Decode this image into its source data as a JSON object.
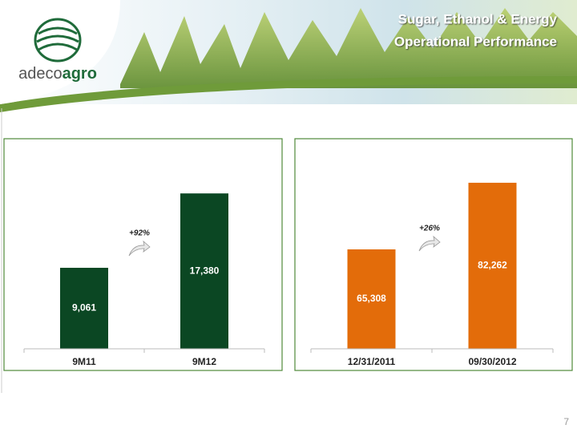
{
  "header": {
    "title_lines": [
      "Sugar, Ethanol & Energy",
      "Operational Performance"
    ],
    "logo": [
      "adeco",
      "agro"
    ]
  },
  "page_number": "7",
  "chart_data": [
    {
      "type": "bar",
      "categories": [
        "9M11",
        "9M12"
      ],
      "values": [
        9061,
        17380
      ],
      "value_labels": [
        "9,061",
        "17,380"
      ],
      "color": "#0b4723",
      "ylim": [
        0,
        20000
      ],
      "annotation": "+92%"
    },
    {
      "type": "bar",
      "categories": [
        "12/31/2011",
        "09/30/2012"
      ],
      "values": [
        65308,
        82262
      ],
      "value_labels": [
        "65,308",
        "82,262"
      ],
      "color": "#e36c0a",
      "ylim": [
        40000,
        90000
      ],
      "annotation": "+26%"
    }
  ]
}
